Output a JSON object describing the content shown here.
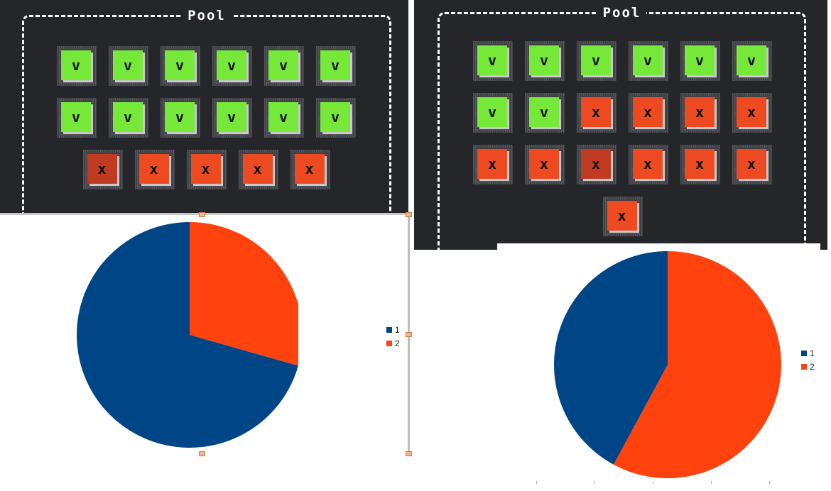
{
  "colors": {
    "panel": "#25262a",
    "ok": "#76e83a",
    "fail": "#ee4a22",
    "fail_dark": "#c03b22",
    "series_1": "#004586",
    "series_2": "#ff420e"
  },
  "panels": [
    {
      "title": "Pool",
      "rows": [
        [
          "ok",
          "ok",
          "ok",
          "ok",
          "ok",
          "ok"
        ],
        [
          "ok",
          "ok",
          "ok",
          "ok",
          "ok",
          "ok"
        ],
        [
          "fail-dark",
          "fail",
          "fail",
          "fail",
          "fail"
        ]
      ]
    },
    {
      "title": "Pool",
      "rows": [
        [
          "ok",
          "ok",
          "ok",
          "ok",
          "ok",
          "ok"
        ],
        [
          "ok",
          "ok",
          "fail",
          "fail",
          "fail",
          "fail"
        ],
        [
          "fail",
          "fail",
          "fail-dark",
          "fail",
          "fail",
          "fail"
        ],
        [
          "fail"
        ]
      ]
    }
  ],
  "tile_symbols": {
    "ok": "v",
    "fail": "x"
  },
  "chart_data": [
    {
      "type": "pie",
      "title": "",
      "categories": [
        "1",
        "2"
      ],
      "values": [
        12,
        5
      ],
      "colors": [
        "#004586",
        "#ff420e"
      ],
      "legend": "right"
    },
    {
      "type": "pie",
      "title": "",
      "categories": [
        "1",
        "2"
      ],
      "values": [
        8,
        11
      ],
      "colors": [
        "#004586",
        "#ff420e"
      ],
      "legend": "right"
    }
  ]
}
